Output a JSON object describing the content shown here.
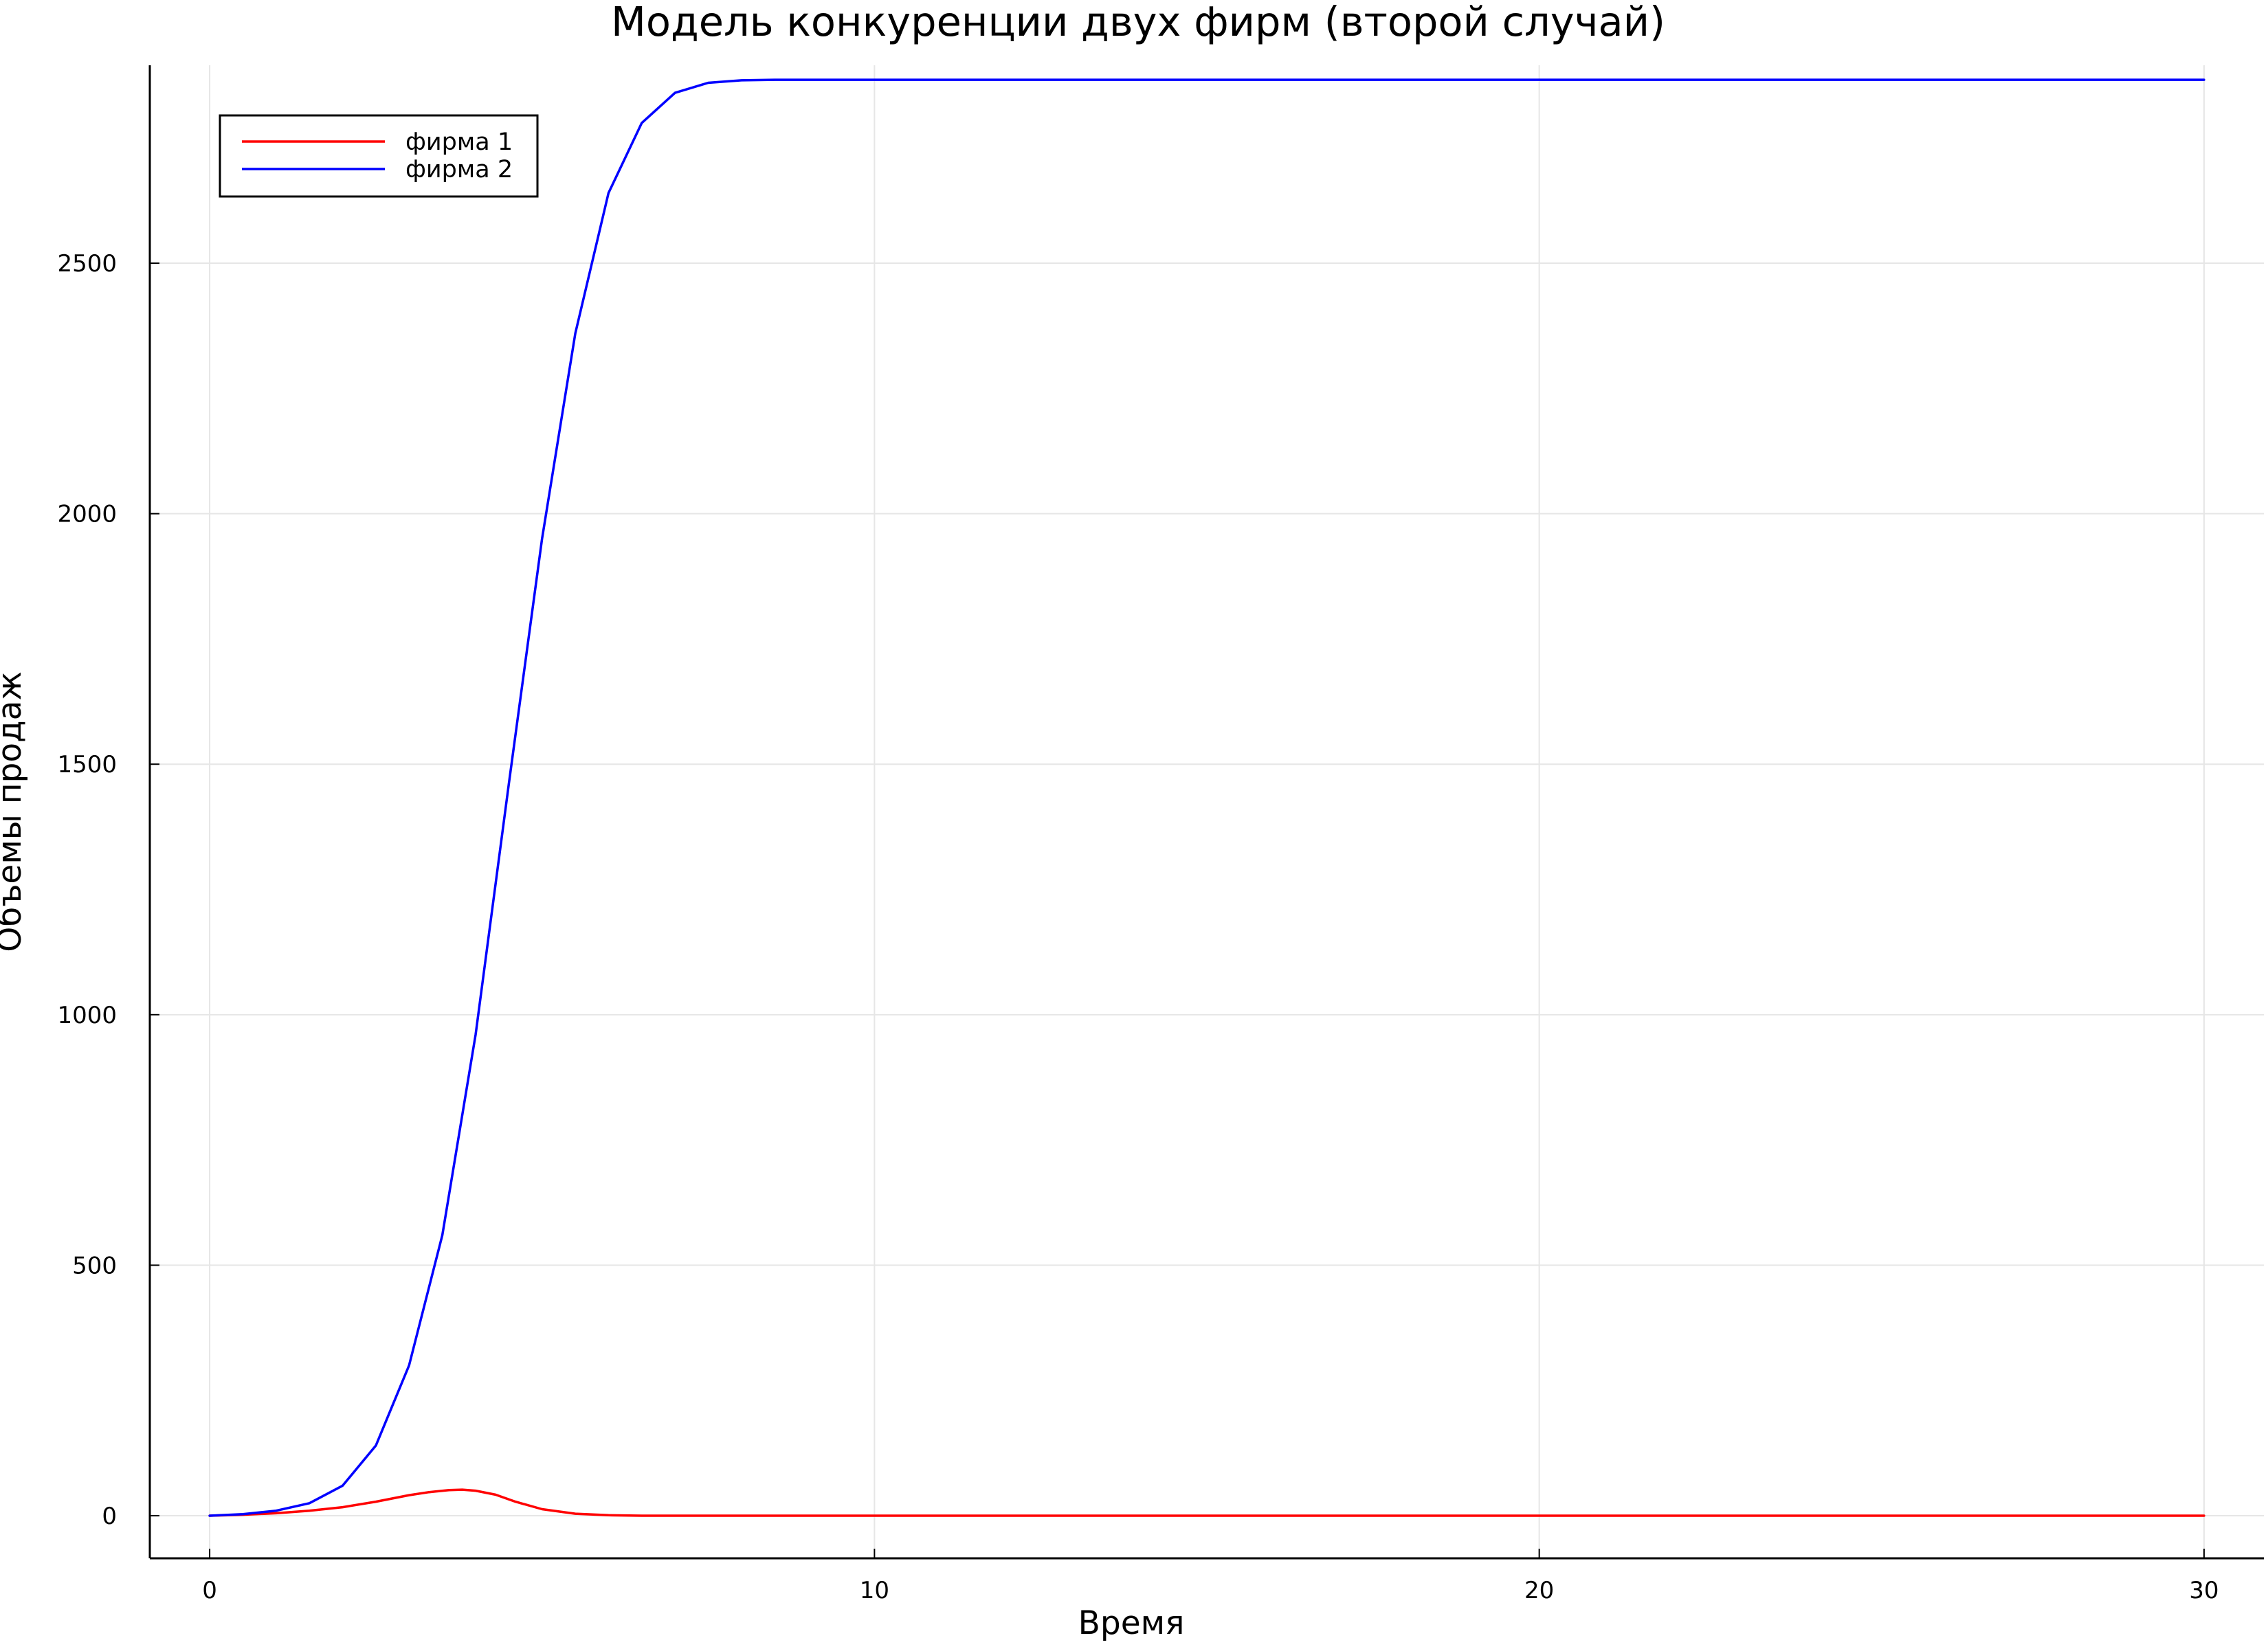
{
  "chart_data": {
    "type": "line",
    "title": "Модель конкуренции двух фирм (второй случай)",
    "xlabel": "Время",
    "ylabel": "Объемы продаж",
    "xlim": [
      -0.9,
      30.9
    ],
    "ylim": [
      -85,
      2895
    ],
    "xticks": [
      0,
      10,
      20,
      30
    ],
    "xtick_labels": [
      "0",
      "10",
      "20",
      "30"
    ],
    "yticks": [
      0,
      500,
      1000,
      1500,
      2000,
      2500
    ],
    "ytick_labels": [
      "0",
      "500",
      "1000",
      "1500",
      "2000",
      "2500"
    ],
    "grid": true,
    "legend_position": "top-left",
    "series": [
      {
        "name": "фирма 1",
        "color": "#ff0000",
        "x": [
          0,
          0.5,
          1,
          1.5,
          2,
          2.5,
          3,
          3.3,
          3.6,
          3.8,
          4.0,
          4.3,
          4.6,
          5.0,
          5.5,
          6.0,
          6.5,
          7,
          8,
          10,
          15,
          20,
          25,
          30
        ],
        "y": [
          0,
          2,
          5,
          10,
          17,
          28,
          41,
          47,
          51,
          52,
          50,
          42,
          28,
          13,
          4,
          1,
          0,
          0,
          0,
          0,
          0,
          0,
          0,
          0
        ]
      },
      {
        "name": "фирма 2",
        "color": "#0000ff",
        "x": [
          0,
          0.5,
          1,
          1.5,
          2,
          2.5,
          3,
          3.5,
          4,
          4.5,
          5,
          5.5,
          6,
          6.5,
          7,
          7.5,
          8,
          8.5,
          9,
          10,
          12,
          15,
          20,
          25,
          30
        ],
        "y": [
          0,
          3,
          10,
          25,
          60,
          140,
          300,
          560,
          960,
          1460,
          1950,
          2360,
          2640,
          2780,
          2840,
          2860,
          2865,
          2866,
          2866,
          2866,
          2866,
          2866,
          2866,
          2866,
          2866
        ]
      }
    ]
  }
}
